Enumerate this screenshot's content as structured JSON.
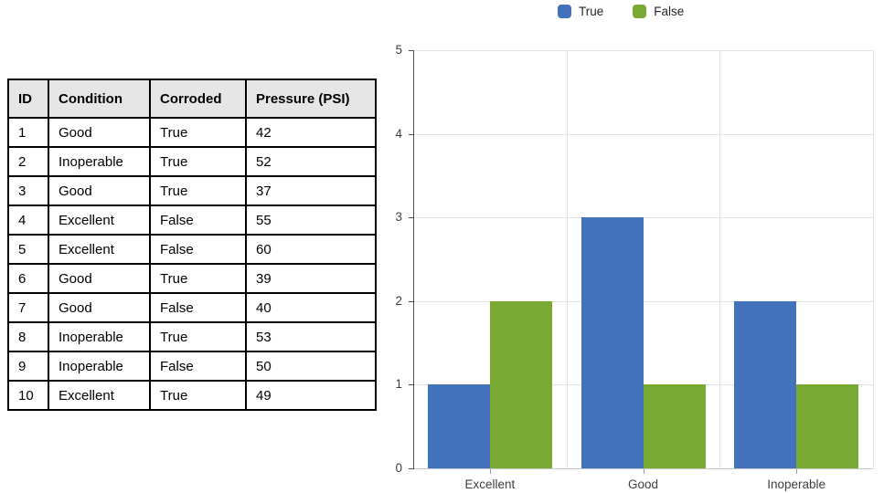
{
  "table": {
    "headers": [
      "ID",
      "Condition",
      "Corroded",
      "Pressure (PSI)"
    ],
    "rows": [
      [
        "1",
        "Good",
        "True",
        "42"
      ],
      [
        "2",
        "Inoperable",
        "True",
        "52"
      ],
      [
        "3",
        "Good",
        "True",
        "37"
      ],
      [
        "4",
        "Excellent",
        "False",
        "55"
      ],
      [
        "5",
        "Excellent",
        "False",
        "60"
      ],
      [
        "6",
        "Good",
        "True",
        "39"
      ],
      [
        "7",
        "Good",
        "False",
        "40"
      ],
      [
        "8",
        "Inoperable",
        "True",
        "53"
      ],
      [
        "9",
        "Inoperable",
        "False",
        "50"
      ],
      [
        "10",
        "Excellent",
        "True",
        "49"
      ]
    ]
  },
  "chart_data": {
    "type": "bar",
    "title": "",
    "categories": [
      "Excellent",
      "Good",
      "Inoperable"
    ],
    "series": [
      {
        "name": "True",
        "color": "#4372BD",
        "values": [
          1,
          3,
          2
        ]
      },
      {
        "name": "False",
        "color": "#7AAA33",
        "values": [
          2,
          1,
          1
        ]
      }
    ],
    "xlabel": "",
    "ylabel": "",
    "ylim": [
      0,
      5
    ],
    "yticks": [
      0,
      1,
      2,
      3,
      4,
      5
    ],
    "grid": true,
    "legend_position": "top"
  },
  "colors": {
    "table_header_bg": "#E7E6E6",
    "table_border": "#000000",
    "gridline": "#E3E3E3",
    "baseline": "#C6C6C6",
    "y_axis": "#4D4D4D",
    "axis_text": "#3F3F3F",
    "legend_text": "#262626"
  }
}
